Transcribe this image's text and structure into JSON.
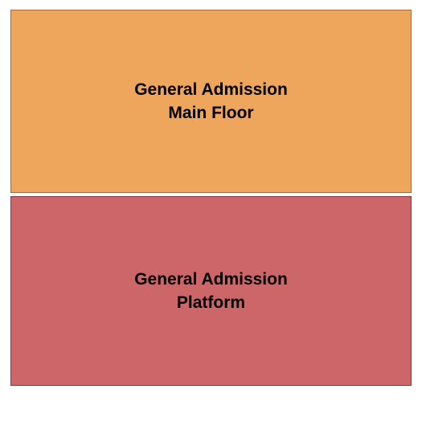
{
  "chart": {
    "type": "seating-map",
    "background_color": "#ffffff",
    "sections": [
      {
        "label_line1": "General Admission",
        "label_line2": "Main Floor",
        "fill_color": "#eea55c",
        "border_color": "#a56a2f",
        "text_color": "#000000",
        "font_size": 21
      },
      {
        "label_line1": "General Admission",
        "label_line2": "Platform",
        "fill_color": "#cd6668",
        "border_color": "#8a3a3c",
        "text_color": "#000000",
        "font_size": 21
      }
    ]
  }
}
